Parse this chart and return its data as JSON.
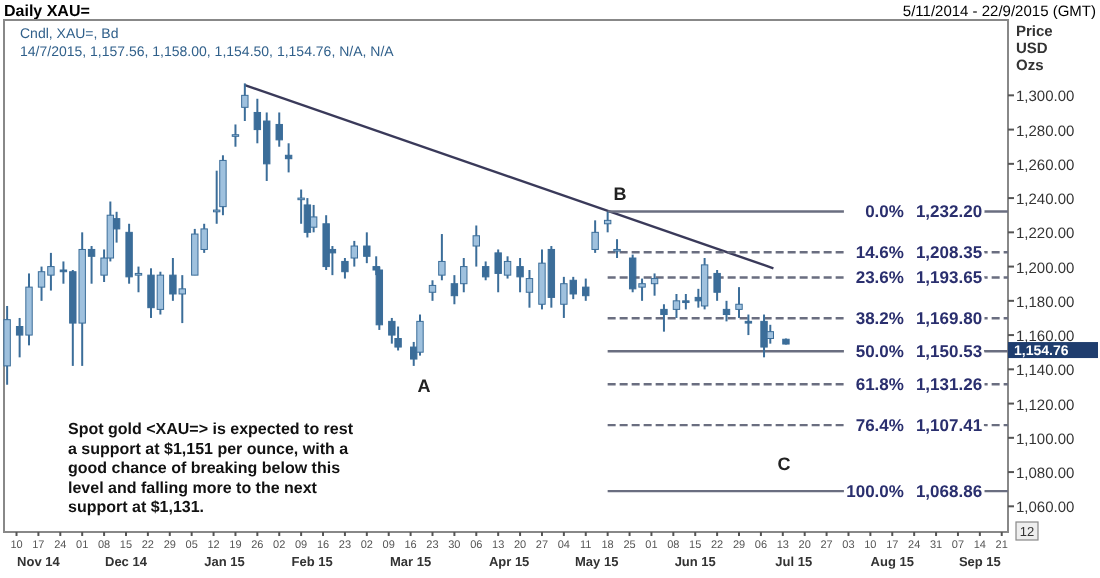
{
  "chart_data": {
    "type": "candlestick",
    "title": "Daily XAU=",
    "subtitle": "5/11/2014 - 22/9/2015 (GMT)",
    "ylabel": "Price USD Ozs",
    "xlim": [
      "2014-11-06",
      "2015-09-23"
    ],
    "ylim": [
      1045,
      1344
    ],
    "xticks": [
      {
        "value": "2014-11-10",
        "label": "10"
      },
      {
        "value": "2014-11-17",
        "label": "17"
      },
      {
        "value": "2014-11-24",
        "label": "24"
      },
      {
        "value": "2014-12-01",
        "label": "01"
      },
      {
        "value": "2014-12-08",
        "label": "08"
      },
      {
        "value": "2014-12-15",
        "label": "15"
      },
      {
        "value": "2014-12-22",
        "label": "22"
      },
      {
        "value": "2014-12-29",
        "label": "29"
      },
      {
        "value": "2015-01-05",
        "label": "05"
      },
      {
        "value": "2015-01-12",
        "label": "12"
      },
      {
        "value": "2015-01-19",
        "label": "19"
      },
      {
        "value": "2015-01-26",
        "label": "26"
      },
      {
        "value": "2015-02-02",
        "label": "02"
      },
      {
        "value": "2015-02-09",
        "label": "09"
      },
      {
        "value": "2015-02-16",
        "label": "16"
      },
      {
        "value": "2015-02-23",
        "label": "23"
      },
      {
        "value": "2015-03-02",
        "label": "02"
      },
      {
        "value": "2015-03-09",
        "label": "09"
      },
      {
        "value": "2015-03-16",
        "label": "16"
      },
      {
        "value": "2015-03-23",
        "label": "23"
      },
      {
        "value": "2015-03-30",
        "label": "30"
      },
      {
        "value": "2015-04-06",
        "label": "06"
      },
      {
        "value": "2015-04-13",
        "label": "13"
      },
      {
        "value": "2015-04-20",
        "label": "20"
      },
      {
        "value": "2015-04-27",
        "label": "27"
      },
      {
        "value": "2015-05-04",
        "label": "04"
      },
      {
        "value": "2015-05-11",
        "label": "11"
      },
      {
        "value": "2015-05-18",
        "label": "18"
      },
      {
        "value": "2015-05-25",
        "label": "25"
      },
      {
        "value": "2015-06-01",
        "label": "01"
      },
      {
        "value": "2015-06-08",
        "label": "08"
      },
      {
        "value": "2015-06-15",
        "label": "15"
      },
      {
        "value": "2015-06-22",
        "label": "22"
      },
      {
        "value": "2015-06-29",
        "label": "29"
      },
      {
        "value": "2015-07-06",
        "label": "06"
      },
      {
        "value": "2015-07-13",
        "label": "13"
      },
      {
        "value": "2015-07-20",
        "label": "20"
      },
      {
        "value": "2015-07-27",
        "label": "27"
      },
      {
        "value": "2015-08-03",
        "label": "03"
      },
      {
        "value": "2015-08-10",
        "label": "10"
      },
      {
        "value": "2015-08-17",
        "label": "17"
      },
      {
        "value": "2015-08-24",
        "label": "24"
      },
      {
        "value": "2015-08-31",
        "label": "31"
      },
      {
        "value": "2015-09-07",
        "label": "07"
      },
      {
        "value": "2015-09-14",
        "label": "14"
      },
      {
        "value": "2015-09-21",
        "label": "21"
      }
    ],
    "yticks": [
      {
        "value": 1060,
        "label": "1,060.00"
      },
      {
        "value": 1080,
        "label": "1,080.00"
      },
      {
        "value": 1100,
        "label": "1,100.00"
      },
      {
        "value": 1120,
        "label": "1,120.00"
      },
      {
        "value": 1140,
        "label": "1,140.00"
      },
      {
        "value": 1160,
        "label": "1,160.00"
      },
      {
        "value": 1180,
        "label": "1,180.00"
      },
      {
        "value": 1200,
        "label": "1,200.00"
      },
      {
        "value": 1220,
        "label": "1,220.00"
      },
      {
        "value": 1240,
        "label": "1,240.00"
      },
      {
        "value": 1260,
        "label": "1,260.00"
      },
      {
        "value": 1280,
        "label": "1,280.00"
      },
      {
        "value": 1300,
        "label": "1,300.00"
      }
    ],
    "color": "#3b6d99",
    "x": [
      "2014-11-07",
      "2014-11-11",
      "2014-11-14",
      "2014-11-18",
      "2014-11-21",
      "2014-11-25",
      "2014-11-28",
      "2014-12-01",
      "2014-12-04",
      "2014-12-08",
      "2014-12-10",
      "2014-12-12",
      "2014-12-16",
      "2014-12-19",
      "2014-12-23",
      "2014-12-26",
      "2014-12-30",
      "2015-01-02",
      "2015-01-06",
      "2015-01-09",
      "2015-01-13",
      "2015-01-15",
      "2015-01-19",
      "2015-01-22",
      "2015-01-26",
      "2015-01-29",
      "2015-02-02",
      "2015-02-05",
      "2015-02-09",
      "2015-02-11",
      "2015-02-13",
      "2015-02-17",
      "2015-02-19",
      "2015-02-23",
      "2015-02-26",
      "2015-03-02",
      "2015-03-05",
      "2015-03-06",
      "2015-03-10",
      "2015-03-12",
      "2015-03-17",
      "2015-03-19",
      "2015-03-23",
      "2015-03-26",
      "2015-03-30",
      "2015-04-02",
      "2015-04-06",
      "2015-04-09",
      "2015-04-13",
      "2015-04-16",
      "2015-04-20",
      "2015-04-23",
      "2015-04-27",
      "2015-04-30",
      "2015-05-04",
      "2015-05-07",
      "2015-05-11",
      "2015-05-14",
      "2015-05-18",
      "2015-05-21",
      "2015-05-26",
      "2015-05-29",
      "2015-06-02",
      "2015-06-05",
      "2015-06-09",
      "2015-06-12",
      "2015-06-16",
      "2015-06-18",
      "2015-06-22",
      "2015-06-25",
      "2015-06-29",
      "2015-07-02",
      "2015-07-07",
      "2015-07-09",
      "2015-07-14"
    ],
    "ohlc": [
      [
        1142,
        1177,
        1131,
        1169
      ],
      [
        1165,
        1170,
        1147,
        1160
      ],
      [
        1160,
        1196,
        1154,
        1188
      ],
      [
        1188,
        1200,
        1180,
        1197
      ],
      [
        1195,
        1208,
        1186,
        1200
      ],
      [
        1198,
        1203,
        1190,
        1197
      ],
      [
        1197,
        1198,
        1142,
        1167
      ],
      [
        1167,
        1220,
        1142,
        1210
      ],
      [
        1210,
        1212,
        1190,
        1206
      ],
      [
        1195,
        1210,
        1191,
        1205
      ],
      [
        1205,
        1238,
        1203,
        1230
      ],
      [
        1228,
        1232,
        1214,
        1222
      ],
      [
        1220,
        1225,
        1190,
        1194
      ],
      [
        1195,
        1200,
        1185,
        1196
      ],
      [
        1195,
        1199,
        1170,
        1176
      ],
      [
        1175,
        1197,
        1172,
        1195
      ],
      [
        1195,
        1205,
        1180,
        1184
      ],
      [
        1184,
        1195,
        1167,
        1187
      ],
      [
        1195,
        1222,
        1195,
        1219
      ],
      [
        1210,
        1225,
        1208,
        1222
      ],
      [
        1232,
        1256,
        1225,
        1233
      ],
      [
        1235,
        1265,
        1230,
        1262
      ],
      [
        1277,
        1283,
        1270,
        1277
      ],
      [
        1293,
        1307,
        1285,
        1300
      ],
      [
        1290,
        1298,
        1272,
        1280
      ],
      [
        1285,
        1290,
        1250,
        1260
      ],
      [
        1283,
        1290,
        1270,
        1274
      ],
      [
        1265,
        1272,
        1255,
        1263
      ],
      [
        1240,
        1245,
        1225,
        1240
      ],
      [
        1236,
        1240,
        1217,
        1220
      ],
      [
        1223,
        1236,
        1220,
        1229
      ],
      [
        1225,
        1230,
        1198,
        1200
      ],
      [
        1210,
        1212,
        1195,
        1208
      ],
      [
        1203,
        1205,
        1193,
        1197
      ],
      [
        1205,
        1215,
        1200,
        1212
      ],
      [
        1212,
        1220,
        1202,
        1206
      ],
      [
        1200,
        1206,
        1195,
        1198
      ],
      [
        1198,
        1200,
        1163,
        1166
      ],
      [
        1168,
        1170,
        1155,
        1160
      ],
      [
        1158,
        1165,
        1151,
        1153
      ],
      [
        1153,
        1156,
        1142,
        1146
      ],
      [
        1150,
        1172,
        1148,
        1168
      ],
      [
        1185,
        1192,
        1180,
        1189
      ],
      [
        1195,
        1219,
        1192,
        1203
      ],
      [
        1190,
        1195,
        1178,
        1183
      ],
      [
        1190,
        1205,
        1185,
        1200
      ],
      [
        1212,
        1224,
        1200,
        1218
      ],
      [
        1200,
        1203,
        1192,
        1194
      ],
      [
        1208,
        1210,
        1185,
        1196
      ],
      [
        1195,
        1206,
        1193,
        1203
      ],
      [
        1200,
        1205,
        1185,
        1194
      ],
      [
        1185,
        1198,
        1176,
        1193
      ],
      [
        1178,
        1210,
        1175,
        1202
      ],
      [
        1210,
        1212,
        1176,
        1182
      ],
      [
        1178,
        1194,
        1170,
        1190
      ],
      [
        1192,
        1194,
        1181,
        1184
      ],
      [
        1188,
        1193,
        1180,
        1183
      ],
      [
        1210,
        1227,
        1208,
        1220
      ],
      [
        1225,
        1232,
        1220,
        1227
      ],
      [
        1210,
        1216,
        1205,
        1210
      ],
      [
        1205,
        1207,
        1185,
        1187
      ],
      [
        1188,
        1193,
        1180,
        1190
      ],
      [
        1190,
        1196,
        1183,
        1193
      ],
      [
        1175,
        1178,
        1162,
        1172
      ],
      [
        1175,
        1184,
        1170,
        1180
      ],
      [
        1180,
        1184,
        1175,
        1179
      ],
      [
        1182,
        1187,
        1176,
        1180
      ],
      [
        1177,
        1205,
        1175,
        1201
      ],
      [
        1196,
        1198,
        1180,
        1185
      ],
      [
        1175,
        1180,
        1168,
        1172
      ],
      [
        1175,
        1188,
        1170,
        1178
      ],
      [
        1168,
        1172,
        1160,
        1167
      ],
      [
        1168,
        1172,
        1147,
        1153
      ],
      [
        1158,
        1166,
        1155,
        1162
      ],
      [
        1157.56,
        1158,
        1154.5,
        1154.76
      ]
    ],
    "series": [
      {
        "type": "line",
        "color": "#3a3a5a",
        "line_style": "solid",
        "x": [
          "2015-01-22",
          "2015-07-10"
        ],
        "values": [
          1306,
          1199
        ]
      },
      {
        "type": "line",
        "name": "0.0%",
        "color": "#6a6e80",
        "line_style": "solid",
        "x": [
          "2015-05-18",
          "2015-09-23"
        ],
        "values": [
          1232.2,
          1232.2
        ],
        "value_labels": [
          null,
          "1,232.20"
        ]
      },
      {
        "type": "line",
        "name": "14.6%",
        "color": "#6a6e80",
        "line_style": "dashed",
        "x": [
          "2015-05-18",
          "2015-09-23"
        ],
        "values": [
          1208.35,
          1208.35
        ],
        "value_labels": [
          null,
          "1,208.35"
        ]
      },
      {
        "type": "line",
        "name": "23.6%",
        "color": "#6a6e80",
        "line_style": "dashed",
        "x": [
          "2015-05-18",
          "2015-09-23"
        ],
        "values": [
          1193.65,
          1193.65
        ],
        "value_labels": [
          null,
          "1,193.65"
        ]
      },
      {
        "type": "line",
        "name": "38.2%",
        "color": "#6a6e80",
        "line_style": "dashed",
        "x": [
          "2015-05-18",
          "2015-09-23"
        ],
        "values": [
          1169.8,
          1169.8
        ],
        "value_labels": [
          null,
          "1,169.80"
        ]
      },
      {
        "type": "line",
        "name": "50.0%",
        "color": "#6a6e80",
        "line_style": "solid",
        "x": [
          "2015-05-18",
          "2015-09-23"
        ],
        "values": [
          1150.53,
          1150.53
        ],
        "value_labels": [
          null,
          "1,150.53"
        ]
      },
      {
        "type": "line",
        "name": "61.8%",
        "color": "#6a6e80",
        "line_style": "dashed",
        "x": [
          "2015-05-18",
          "2015-09-23"
        ],
        "values": [
          1131.26,
          1131.26
        ],
        "value_labels": [
          null,
          "1,131.26"
        ]
      },
      {
        "type": "line",
        "name": "76.4%",
        "color": "#6a6e80",
        "line_style": "dashed",
        "x": [
          "2015-05-18",
          "2015-09-23"
        ],
        "values": [
          1107.41,
          1107.41
        ],
        "value_labels": [
          null,
          "1,107.41"
        ]
      },
      {
        "type": "line",
        "name": "100.0%",
        "color": "#6a6e80",
        "line_style": "solid",
        "x": [
          "2015-05-18",
          "2015-09-23"
        ],
        "values": [
          1068.86,
          1068.86
        ],
        "value_labels": [
          null,
          "1,068.86"
        ]
      }
    ],
    "annotations": [
      "Cndl, XAU=, Bd",
      "14/7/2015, 1,157.56, 1,158.00, 1,154.50, 1,154.76, N/A, N/A",
      "Spot gold <XAU=> is expected to rest a support at $1,151 per ounce, with a good chance of breaking below this level and falling more to the next support at $1,131.",
      "12",
      "A",
      "B",
      "C",
      "1,154.76",
      "Nov 14",
      "Dec 14",
      "Jan 15",
      "Feb 15",
      "Mar 15",
      "Apr 15",
      "May 15",
      "Jun 15",
      "Jul 15",
      "Aug 15",
      "Sep 15"
    ]
  }
}
